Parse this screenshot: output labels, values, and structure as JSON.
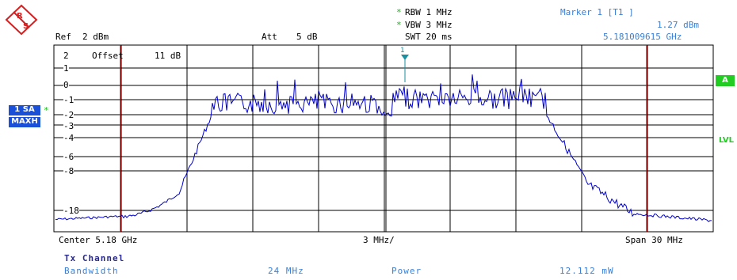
{
  "header": {
    "logo_text": "RS",
    "ref_label": "Ref",
    "ref_value": "2 dBm",
    "att_label": "Att",
    "att_value": "5 dB",
    "rbw": "RBW 1 MHz",
    "vbw": "VBW 3 MHz",
    "swt": "SWT 20 ms",
    "coupling_mark": "*"
  },
  "marker": {
    "title": "Marker 1 [T1 ]",
    "level": "1.27 dBm",
    "frequency": "5.181009615 GHz",
    "plot_label": "1"
  },
  "trace_info": {
    "trace_number": "2",
    "offset_label": "Offset",
    "offset_value": "11 dB",
    "trace_badge": "1 SA",
    "detector_badge": "MAXH",
    "badge_star": "*"
  },
  "right_badges": {
    "a_badge": "A",
    "lvl_label": "LVL"
  },
  "y_axis": {
    "ticks": [
      "1",
      "0",
      "-1",
      "-2",
      "-3",
      "-4",
      "-6",
      "-8",
      "-18"
    ]
  },
  "x_axis": {
    "center": "Center 5.18 GHz",
    "span_per_div": "3 MHz/",
    "span": "Span 30 MHz"
  },
  "footer": {
    "title": "Tx Channel",
    "bandwidth_label": "Bandwidth",
    "bandwidth_value": "24 MHz",
    "power_label": "Power",
    "power_value": "12.112 mW"
  },
  "colors": {
    "trace": "#0000cc",
    "limit_lines": "#cc0000",
    "marker": "#1a8fa0",
    "label_blue": "#3a7fd5",
    "badge_blue": "#1a4fd8",
    "badge_green": "#22cc22"
  },
  "icons": {
    "logo": "rohde-schwarz-logo",
    "marker": "marker-triangle-icon"
  }
}
